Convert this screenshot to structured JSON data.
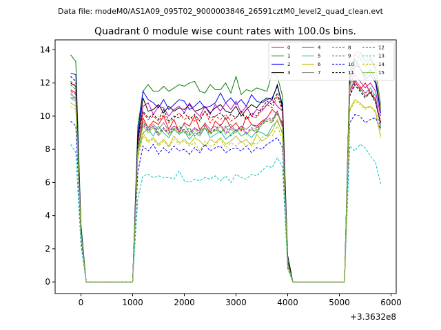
{
  "figure": {
    "suptitle": "Data file: modeM0/AS1A09_095T02_9000003846_26591cztM0_level2_quad_clean.evt",
    "title": "Quadrant 0 module wise count rates with 100.0s bins.",
    "offset_label": "+3.3632e8"
  },
  "chart_data": {
    "type": "line",
    "title": "Quadrant 0 module wise count rates with 100.0s bins.",
    "xlabel": "",
    "ylabel": "",
    "x_offset": "+3.3632e8",
    "xlim": [
      -500,
      6100
    ],
    "ylim": [
      -0.7,
      14.6
    ],
    "xticks": [
      0,
      1000,
      2000,
      3000,
      4000,
      5000,
      6000
    ],
    "yticks": [
      0,
      2,
      4,
      6,
      8,
      10,
      12,
      14
    ],
    "grid": false,
    "legend_position": "top-right",
    "legend_columns": 4,
    "x": [
      -200,
      -100,
      0,
      100,
      200,
      300,
      400,
      500,
      600,
      700,
      800,
      900,
      1000,
      1100,
      1200,
      1300,
      1400,
      1500,
      1600,
      1700,
      1800,
      1900,
      2000,
      2100,
      2200,
      2300,
      2400,
      2500,
      2600,
      2700,
      2800,
      2900,
      3000,
      3100,
      3200,
      3300,
      3400,
      3500,
      3600,
      3700,
      3800,
      3900,
      4000,
      4100,
      4200,
      4300,
      4400,
      4500,
      4600,
      4700,
      4800,
      4900,
      5000,
      5100,
      5200,
      5300,
      5400,
      5500,
      5600,
      5700,
      5800
    ],
    "series": [
      {
        "name": "0",
        "color": "#ff0000",
        "dash": false,
        "values": [
          11.6,
          11.4,
          3.0,
          0,
          0,
          0,
          0,
          0,
          0,
          0,
          0,
          0,
          0,
          8.0,
          9.9,
          9.3,
          9.7,
          9.5,
          10.0,
          9.2,
          9.8,
          9.0,
          9.6,
          9.4,
          10.0,
          9.2,
          9.5,
          9.0,
          9.7,
          9.4,
          9.9,
          9.3,
          9.6,
          9.1,
          10.0,
          9.5,
          9.4,
          9.7,
          9.9,
          10.4,
          10.1,
          9.6,
          1.1,
          0,
          0,
          0,
          0,
          0,
          0,
          0,
          0,
          0,
          0,
          0,
          11.5,
          12.1,
          11.6,
          12.0,
          11.4,
          11.0,
          9.6
        ]
      },
      {
        "name": "1",
        "color": "#008000",
        "dash": false,
        "values": [
          13.7,
          13.3,
          3.5,
          0,
          0,
          0,
          0,
          0,
          0,
          0,
          0,
          0,
          0,
          9.4,
          11.5,
          11.9,
          11.5,
          11.5,
          11.8,
          11.5,
          11.7,
          11.9,
          11.8,
          12.0,
          12.1,
          11.5,
          11.4,
          11.9,
          11.6,
          11.6,
          12.0,
          11.4,
          12.4,
          11.3,
          11.6,
          11.5,
          11.7,
          11.6,
          11.5,
          12.6,
          12.4,
          11.2,
          1.3,
          0,
          0,
          0,
          0,
          0,
          0,
          0,
          0,
          0,
          0,
          0,
          12.7,
          13.7,
          13.5,
          13.0,
          13.4,
          12.8,
          10.7
        ]
      },
      {
        "name": "2",
        "color": "#0000ff",
        "dash": false,
        "values": [
          12.6,
          12.5,
          3.3,
          0,
          0,
          0,
          0,
          0,
          0,
          0,
          0,
          0,
          0,
          9.0,
          11.5,
          11.0,
          10.8,
          10.5,
          11.0,
          10.4,
          10.7,
          11.0,
          10.9,
          10.4,
          10.6,
          10.9,
          10.5,
          10.6,
          10.8,
          11.4,
          10.8,
          11.1,
          10.7,
          11.0,
          10.6,
          11.3,
          10.9,
          10.8,
          11.0,
          11.1,
          11.8,
          10.7,
          1.2,
          0,
          0,
          0,
          0,
          0,
          0,
          0,
          0,
          0,
          0,
          0,
          12.1,
          13.1,
          12.9,
          12.2,
          12.5,
          12.0,
          10.2
        ]
      },
      {
        "name": "3",
        "color": "#000000",
        "dash": false,
        "values": [
          12.0,
          11.8,
          3.2,
          0,
          0,
          0,
          0,
          0,
          0,
          0,
          0,
          0,
          0,
          8.6,
          11.1,
          10.3,
          10.4,
          10.7,
          10.2,
          10.6,
          10.3,
          10.5,
          10.4,
          10.7,
          10.3,
          10.4,
          10.6,
          10.2,
          10.5,
          10.7,
          10.3,
          10.2,
          10.6,
          10.0,
          10.4,
          10.7,
          10.5,
          10.9,
          11.1,
          11.0,
          11.9,
          10.5,
          1.6,
          0,
          0,
          0,
          0,
          0,
          0,
          0,
          0,
          0,
          0,
          0,
          12.3,
          13.4,
          12.9,
          12.4,
          12.8,
          12.2,
          10.4
        ]
      },
      {
        "name": "4",
        "color": "#bf00bf",
        "dash": false,
        "values": [
          11.1,
          11.1,
          3.1,
          0,
          0,
          0,
          0,
          0,
          0,
          0,
          0,
          0,
          0,
          8.3,
          10.6,
          10.8,
          10.1,
          10.6,
          10.5,
          10.0,
          10.4,
          10.6,
          10.2,
          10.8,
          10.3,
          10.0,
          10.6,
          10.1,
          10.7,
          10.3,
          10.8,
          10.4,
          10.9,
          10.2,
          10.6,
          10.0,
          10.4,
          10.3,
          10.7,
          11.0,
          10.6,
          10.3,
          1.1,
          0,
          0,
          0,
          0,
          0,
          0,
          0,
          0,
          0,
          0,
          0,
          11.9,
          12.5,
          12.1,
          11.7,
          12.0,
          11.5,
          10.0
        ]
      },
      {
        "name": "5",
        "color": "#20b2aa",
        "dash": false,
        "values": [
          11.1,
          10.9,
          3.0,
          0,
          0,
          0,
          0,
          0,
          0,
          0,
          0,
          0,
          0,
          7.9,
          9.0,
          9.2,
          8.8,
          9.4,
          9.0,
          8.7,
          9.2,
          8.9,
          9.1,
          8.6,
          9.0,
          8.8,
          9.3,
          8.7,
          8.9,
          9.1,
          8.6,
          8.9,
          9.2,
          8.8,
          9.0,
          8.7,
          9.1,
          9.0,
          8.8,
          9.4,
          9.7,
          9.0,
          1.0,
          0,
          0,
          0,
          0,
          0,
          0,
          0,
          0,
          0,
          0,
          0,
          11.6,
          12.2,
          11.8,
          11.4,
          11.7,
          11.2,
          9.4
        ]
      },
      {
        "name": "6",
        "color": "#bfbf00",
        "dash": false,
        "values": [
          10.8,
          10.6,
          2.9,
          0,
          0,
          0,
          0,
          0,
          0,
          0,
          0,
          0,
          0,
          7.6,
          9.0,
          8.5,
          8.7,
          8.3,
          8.6,
          8.2,
          8.8,
          8.4,
          8.6,
          8.3,
          8.7,
          8.5,
          8.2,
          8.6,
          8.4,
          8.7,
          8.3,
          8.5,
          8.8,
          8.4,
          8.6,
          8.2,
          8.9,
          8.5,
          8.7,
          9.1,
          9.8,
          8.9,
          1.0,
          0,
          0,
          0,
          0,
          0,
          0,
          0,
          0,
          0,
          0,
          0,
          10.4,
          11.0,
          10.8,
          10.5,
          10.6,
          10.3,
          8.8
        ]
      },
      {
        "name": "7",
        "color": "#808080",
        "dash": false,
        "values": [
          11.4,
          11.0,
          3.0,
          0,
          0,
          0,
          0,
          0,
          0,
          0,
          0,
          0,
          0,
          8.1,
          9.7,
          9.3,
          9.5,
          9.2,
          9.6,
          9.1,
          9.4,
          9.2,
          9.5,
          9.0,
          9.3,
          9.1,
          9.6,
          9.2,
          9.4,
          9.0,
          9.3,
          9.5,
          9.1,
          9.4,
          9.2,
          9.5,
          9.3,
          9.6,
          9.8,
          9.7,
          10.3,
          9.4,
          1.1,
          0,
          0,
          0,
          0,
          0,
          0,
          0,
          0,
          0,
          0,
          0,
          11.8,
          13.8,
          13.9,
          13.3,
          13.6,
          13.0,
          10.6
        ]
      },
      {
        "name": "8",
        "color": "#ff0000",
        "dash": true,
        "values": [
          12.1,
          11.8,
          3.2,
          0,
          0,
          0,
          0,
          0,
          0,
          0,
          0,
          0,
          0,
          8.4,
          10.2,
          9.8,
          10.0,
          9.7,
          10.1,
          9.6,
          9.9,
          10.2,
          9.8,
          10.0,
          9.7,
          9.9,
          10.3,
          9.6,
          10.0,
          9.8,
          10.1,
          9.7,
          9.9,
          10.2,
          9.8,
          10.0,
          9.9,
          10.4,
          10.7,
          10.5,
          11.2,
          10.3,
          1.2,
          0,
          0,
          0,
          0,
          0,
          0,
          0,
          0,
          0,
          0,
          0,
          11.9,
          12.2,
          11.8,
          11.4,
          11.6,
          11.0,
          9.7
        ]
      },
      {
        "name": "9",
        "color": "#008000",
        "dash": true,
        "values": [
          11.9,
          11.6,
          3.1,
          0,
          0,
          0,
          0,
          0,
          0,
          0,
          0,
          0,
          0,
          8.2,
          9.6,
          9.2,
          9.4,
          9.0,
          9.3,
          8.9,
          9.2,
          9.4,
          9.0,
          9.3,
          8.8,
          9.1,
          9.3,
          8.9,
          9.2,
          9.0,
          9.4,
          8.8,
          9.1,
          9.3,
          8.9,
          9.2,
          9.0,
          9.5,
          9.7,
          9.6,
          10.2,
          9.3,
          1.1,
          0,
          0,
          0,
          0,
          0,
          0,
          0,
          0,
          0,
          0,
          0,
          11.4,
          11.8,
          11.6,
          11.2,
          11.4,
          10.9,
          9.2
        ]
      },
      {
        "name": "10",
        "color": "#0000ff",
        "dash": true,
        "values": [
          9.7,
          9.4,
          2.6,
          0,
          0,
          0,
          0,
          0,
          0,
          0,
          0,
          0,
          0,
          6.6,
          8.2,
          7.9,
          8.3,
          7.7,
          8.1,
          7.8,
          8.2,
          7.9,
          8.0,
          7.7,
          8.1,
          7.8,
          8.3,
          7.9,
          8.1,
          8.2,
          7.8,
          8.0,
          8.1,
          7.9,
          8.2,
          7.8,
          8.1,
          8.0,
          8.3,
          8.5,
          8.7,
          8.1,
          0.9,
          0,
          0,
          0,
          0,
          0,
          0,
          0,
          0,
          0,
          0,
          0,
          9.6,
          10.1,
          10.0,
          9.6,
          9.8,
          9.9,
          9.2
        ]
      },
      {
        "name": "11",
        "color": "#000000",
        "dash": true,
        "values": [
          12.4,
          12.1,
          3.3,
          0,
          0,
          0,
          0,
          0,
          0,
          0,
          0,
          0,
          0,
          8.6,
          10.3,
          9.9,
          10.1,
          9.8,
          10.4,
          9.7,
          10.0,
          9.9,
          10.2,
          9.8,
          10.1,
          9.7,
          10.3,
          9.9,
          10.0,
          10.2,
          9.8,
          10.1,
          9.9,
          10.3,
          9.8,
          10.2,
          10.0,
          10.5,
          10.9,
          10.7,
          11.4,
          10.4,
          1.2,
          0,
          0,
          0,
          0,
          0,
          0,
          0,
          0,
          0,
          0,
          0,
          11.2,
          11.9,
          11.5,
          11.1,
          11.4,
          10.8,
          9.6
        ]
      },
      {
        "name": "12",
        "color": "#bf00bf",
        "dash": true,
        "values": [
          11.5,
          11.3,
          3.1,
          0,
          0,
          0,
          0,
          0,
          0,
          0,
          0,
          0,
          0,
          8.0,
          9.5,
          9.1,
          9.4,
          8.9,
          9.3,
          9.0,
          9.4,
          9.1,
          9.2,
          8.9,
          9.3,
          9.0,
          9.4,
          9.1,
          9.2,
          9.5,
          9.0,
          9.3,
          9.1,
          9.4,
          9.0,
          9.3,
          9.2,
          9.6,
          9.9,
          9.8,
          10.3,
          9.4,
          1.1,
          0,
          0,
          0,
          0,
          0,
          0,
          0,
          0,
          0,
          0,
          0,
          11.3,
          12.0,
          11.7,
          11.2,
          11.5,
          11.0,
          9.4
        ]
      },
      {
        "name": "13",
        "color": "#00bfbf",
        "dash": true,
        "values": [
          8.3,
          7.8,
          2.2,
          0,
          0,
          0,
          0,
          0,
          0,
          0,
          0,
          0,
          0,
          5.0,
          6.4,
          6.5,
          6.3,
          6.4,
          6.3,
          6.3,
          6.2,
          6.7,
          6.1,
          6.0,
          6.2,
          6.1,
          6.3,
          6.2,
          6.4,
          6.1,
          6.4,
          6.0,
          6.5,
          6.3,
          6.2,
          6.5,
          6.4,
          6.7,
          7.0,
          6.9,
          7.5,
          6.9,
          0.8,
          0,
          0,
          0,
          0,
          0,
          0,
          0,
          0,
          0,
          0,
          0,
          8.2,
          7.9,
          8.3,
          8.1,
          7.6,
          7.2,
          5.9
        ]
      },
      {
        "name": "14",
        "color": "#bfbf00",
        "dash": true,
        "values": [
          10.6,
          10.4,
          2.9,
          0,
          0,
          0,
          0,
          0,
          0,
          0,
          0,
          0,
          0,
          7.4,
          8.8,
          8.4,
          8.6,
          8.2,
          8.5,
          8.1,
          8.6,
          8.3,
          8.5,
          8.2,
          8.4,
          7.9,
          8.5,
          8.2,
          8.3,
          8.6,
          8.1,
          8.4,
          8.2,
          8.5,
          8.2,
          8.4,
          8.3,
          8.7,
          8.9,
          8.8,
          9.4,
          8.6,
          1.0,
          0,
          0,
          0,
          0,
          0,
          0,
          0,
          0,
          0,
          0,
          0,
          10.3,
          10.9,
          10.7,
          10.4,
          10.6,
          10.2,
          8.7
        ]
      },
      {
        "name": "15",
        "color": "#80bf40",
        "dash": false,
        "values": [
          11.3,
          11.1,
          3.0,
          0,
          0,
          0,
          0,
          0,
          0,
          0,
          0,
          0,
          0,
          7.9,
          9.4,
          9.0,
          9.3,
          8.8,
          9.2,
          8.9,
          9.3,
          9.0,
          9.1,
          8.8,
          9.2,
          8.9,
          9.3,
          9.0,
          9.1,
          9.4,
          8.9,
          9.2,
          9.0,
          9.3,
          8.9,
          9.2,
          9.1,
          9.5,
          9.8,
          9.7,
          10.2,
          9.3,
          1.1,
          0,
          0,
          0,
          0,
          0,
          0,
          0,
          0,
          0,
          0,
          0,
          11.7,
          12.9,
          13.8,
          13.2,
          13.5,
          12.9,
          10.4
        ]
      }
    ]
  }
}
